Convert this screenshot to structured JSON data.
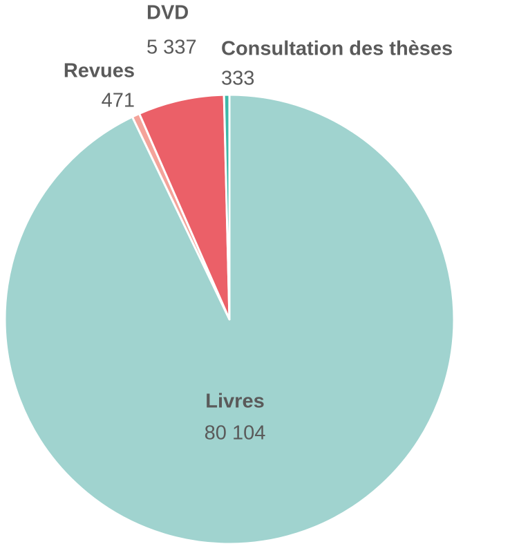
{
  "chart_data": {
    "type": "pie",
    "categories": [
      "Livres",
      "Revues",
      "DVD",
      "Consultation des thèses"
    ],
    "values": [
      80104,
      471,
      5337,
      333
    ],
    "value_labels": [
      "80 104",
      "471",
      "5 337",
      "333"
    ],
    "colors": [
      "#a0d3cf",
      "#f4a39a",
      "#eb6068",
      "#3fb8a9"
    ]
  }
}
